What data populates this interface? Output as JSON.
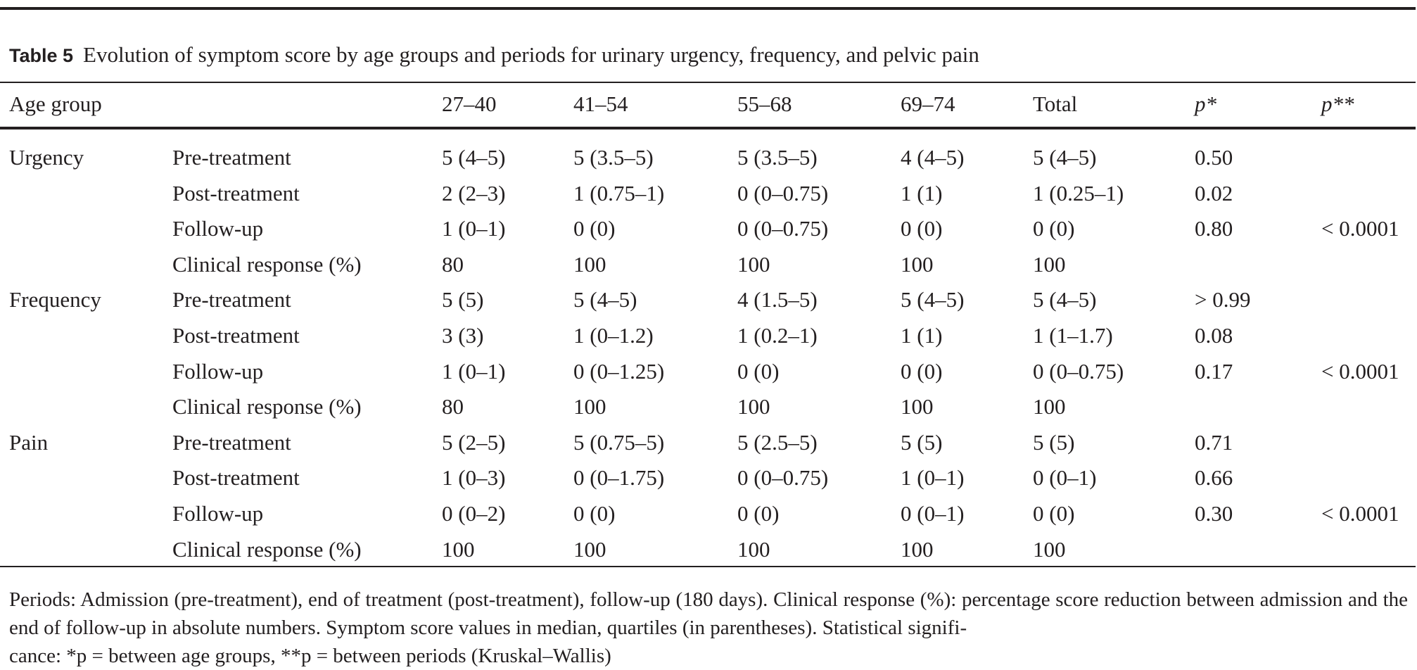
{
  "caption": {
    "label": "Table 5",
    "text": "Evolution of symptom score by age groups and periods for urinary urgency, frequency, and pelvic pain"
  },
  "header": {
    "age_group": "Age group",
    "cols": [
      "27–40",
      "41–54",
      "55–68",
      "69–74",
      "Total"
    ],
    "p1": "p*",
    "p2": "p**"
  },
  "groups": [
    {
      "name": "Urgency",
      "p2": "< 0.0001",
      "rows": [
        {
          "label": "Pre-treatment",
          "values": [
            "5 (4–5)",
            "5 (3.5–5)",
            "5 (3.5–5)",
            "4 (4–5)",
            "5 (4–5)"
          ],
          "p": "0.50"
        },
        {
          "label": "Post-treatment",
          "values": [
            "2 (2–3)",
            "1 (0.75–1)",
            "0 (0–0.75)",
            "1 (1)",
            "1 (0.25–1)"
          ],
          "p": "0.02"
        },
        {
          "label": "Follow-up",
          "values": [
            "1 (0–1)",
            "0 (0)",
            "0 (0–0.75)",
            "0 (0)",
            "0 (0)"
          ],
          "p": "0.80"
        },
        {
          "label": "Clinical response (%)",
          "values": [
            "80",
            "100",
            "100",
            "100",
            "100"
          ],
          "p": ""
        }
      ]
    },
    {
      "name": "Frequency",
      "p2": "< 0.0001",
      "rows": [
        {
          "label": "Pre-treatment",
          "values": [
            "5 (5)",
            "5 (4–5)",
            "4 (1.5–5)",
            "5 (4–5)",
            "5 (4–5)"
          ],
          "p": "> 0.99"
        },
        {
          "label": "Post-treatment",
          "values": [
            "3 (3)",
            "1 (0–1.2)",
            "1 (0.2–1)",
            "1 (1)",
            "1 (1–1.7)"
          ],
          "p": "0.08"
        },
        {
          "label": "Follow-up",
          "values": [
            "1 (0–1)",
            "0 (0–1.25)",
            "0 (0)",
            "0 (0)",
            "0 (0–0.75)"
          ],
          "p": "0.17"
        },
        {
          "label": "Clinical response (%)",
          "values": [
            "80",
            "100",
            "100",
            "100",
            "100"
          ],
          "p": ""
        }
      ]
    },
    {
      "name": "Pain",
      "p2": "< 0.0001",
      "rows": [
        {
          "label": "Pre-treatment",
          "values": [
            "5 (2–5)",
            "5 (0.75–5)",
            "5 (2.5–5)",
            "5 (5)",
            "5 (5)"
          ],
          "p": "0.71"
        },
        {
          "label": "Post-treatment",
          "values": [
            "1 (0–3)",
            "0 (0–1.75)",
            "0 (0–0.75)",
            "1 (0–1)",
            "0 (0–1)"
          ],
          "p": "0.66"
        },
        {
          "label": "Follow-up",
          "values": [
            "0 (0–2)",
            "0 (0)",
            "0 (0)",
            "0 (0–1)",
            "0 (0)"
          ],
          "p": "0.30"
        },
        {
          "label": "Clinical response (%)",
          "values": [
            "100",
            "100",
            "100",
            "100",
            "100"
          ],
          "p": ""
        }
      ]
    }
  ],
  "footnote": {
    "line1": "Periods: Admission (pre-treatment), end of treatment (post-treatment), follow-up (180 days). Clinical response (%): percentage score reduction between admission and the end of follow-up in absolute numbers. Symptom score values in median, quartiles (in parentheses). Statistical signifi-",
    "line2": "cance: *p = between age groups, **p = between periods (Kruskal–Wallis)"
  }
}
